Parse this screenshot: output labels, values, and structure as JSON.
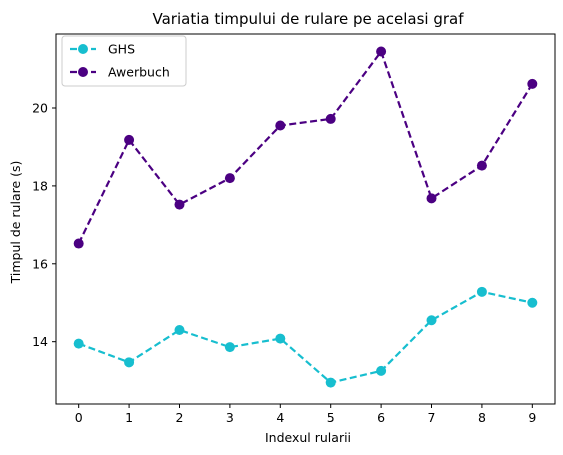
{
  "chart_data": {
    "type": "line",
    "title": "Variatia timpului de rulare pe acelasi graf",
    "xlabel": "Indexul rularii",
    "ylabel": "Timpul de rulare (s)",
    "x": [
      0,
      1,
      2,
      3,
      4,
      5,
      6,
      7,
      8,
      9
    ],
    "x_ticks": [
      "0",
      "1",
      "2",
      "3",
      "4",
      "5",
      "6",
      "7",
      "8",
      "9"
    ],
    "y_ticks": [
      "14",
      "16",
      "18",
      "20"
    ],
    "xlim": [
      -0.45,
      9.45
    ],
    "ylim": [
      12.4,
      21.9
    ],
    "grid": false,
    "legend_position": "upper-left",
    "series": [
      {
        "name": "GHS",
        "color": "#17becf",
        "line_style": "dashed",
        "marker": "circle",
        "values": [
          13.95,
          13.47,
          14.3,
          13.86,
          14.08,
          12.95,
          13.25,
          14.55,
          15.28,
          15.0
        ]
      },
      {
        "name": "Awerbuch",
        "color": "#4b0082",
        "line_style": "dashed",
        "marker": "circle",
        "values": [
          16.52,
          19.18,
          17.52,
          18.2,
          19.55,
          19.72,
          21.45,
          17.68,
          18.52,
          20.62
        ]
      }
    ]
  }
}
